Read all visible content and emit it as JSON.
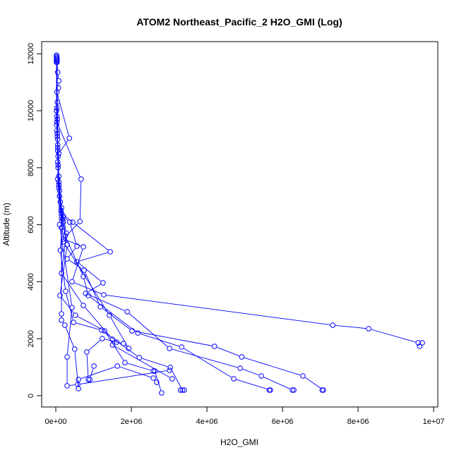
{
  "chart_data": {
    "type": "line",
    "title": "ATOM2 Northeast_Pacific_2 H2O_GMI (Log)",
    "xlabel": "H2O_GMI",
    "ylabel": "Altitude (m)",
    "xlim": [
      -374000,
      10110000
    ],
    "ylim": [
      -396,
      12426
    ],
    "x_ticks": [
      0,
      2000000,
      4000000,
      6000000,
      8000000,
      10000000
    ],
    "x_tick_labels": [
      "0e+00",
      "2e+06",
      "4e+06",
      "6e+06",
      "8e+06",
      "1e+07"
    ],
    "y_ticks": [
      0,
      2000,
      4000,
      6000,
      8000,
      10000,
      12000
    ],
    "y_tick_labels": [
      "0",
      "2000",
      "4000",
      "6000",
      "8000",
      "10000",
      "12000"
    ],
    "grid": false,
    "color": "#0000FF",
    "marker": "open-circle",
    "profiles": [
      [
        [
          20000.0,
          11950
        ],
        [
          20000.0,
          11900
        ],
        [
          30000.0,
          11850
        ],
        [
          20000.0,
          11800
        ],
        [
          30000.0,
          11750
        ],
        [
          50000.0,
          11350
        ],
        [
          80000.0,
          11050
        ],
        [
          70000.0,
          10800
        ],
        [
          30000.0,
          10650
        ],
        [
          360000.0,
          9035
        ],
        [
          80000.0,
          8500
        ],
        [
          50000.0,
          7600
        ],
        [
          100000.0,
          7000
        ],
        [
          150000.0,
          6400
        ],
        [
          450000.0,
          6089
        ],
        [
          1440000.0,
          5050
        ],
        [
          560000.0,
          4700
        ],
        [
          1250000.0,
          3960
        ],
        [
          790000.0,
          3589
        ],
        [
          1890000.0,
          2945
        ],
        [
          3010000.0,
          1658
        ],
        [
          4880000.0,
          965
        ],
        [
          5440000.0,
          693
        ],
        [
          6260000.0,
          198
        ],
        [
          6300000.0,
          198
        ]
      ],
      [
        [
          30000.0,
          11800
        ],
        [
          40000.0,
          10300
        ],
        [
          20000.0,
          10000
        ],
        [
          30000.0,
          9600
        ],
        [
          670000.0,
          7600
        ],
        [
          640000.0,
          6114
        ],
        [
          200000.0,
          5500
        ],
        [
          730000.0,
          5223
        ],
        [
          430000.0,
          4000
        ],
        [
          1270000.0,
          3540
        ],
        [
          7330000.0,
          2475
        ],
        [
          8280000.0,
          2351
        ],
        [
          9590000.0,
          1856
        ],
        [
          9630000.0,
          1733
        ],
        [
          9700000.0,
          1856
        ]
      ],
      [
        [
          20000.0,
          11900
        ],
        [
          20000.0,
          9500
        ],
        [
          40000.0,
          9100
        ],
        [
          50000.0,
          8200
        ],
        [
          80000.0,
          7300
        ],
        [
          120000.0,
          6800
        ],
        [
          200000.0,
          6300
        ],
        [
          370000.0,
          6089
        ],
        [
          560000.0,
          5248
        ],
        [
          300000.0,
          4800
        ],
        [
          750000.0,
          4406
        ],
        [
          1180000.0,
          3119
        ],
        [
          2020000.0,
          2277
        ],
        [
          4200000.0,
          1733
        ],
        [
          4920000.0,
          1361
        ],
        [
          6540000.0,
          693
        ],
        [
          7080000.0,
          198
        ],
        [
          7050000.0,
          198
        ]
      ],
      [
        [
          30000.0,
          11700
        ],
        [
          20000.0,
          10000
        ],
        [
          30000.0,
          9300
        ],
        [
          60000.0,
          8000
        ],
        [
          100000.0,
          7200
        ],
        [
          140000.0,
          6500
        ],
        [
          250000.0,
          5600
        ],
        [
          730000.0,
          4183
        ],
        [
          860000.0,
          3515
        ],
        [
          2170000.0,
          2200
        ],
        [
          3330000.0,
          1708
        ],
        [
          4710000.0,
          594
        ],
        [
          5680000.0,
          198
        ],
        [
          5650000.0,
          198
        ]
      ],
      [
        [
          20000.0,
          11850
        ],
        [
          30000.0,
          9800
        ],
        [
          50000.0,
          8700
        ],
        [
          80000.0,
          7500
        ],
        [
          180000.0,
          6200
        ],
        [
          120000.0,
          5100
        ],
        [
          260000.0,
          3663
        ],
        [
          470000.0,
          2574
        ],
        [
          1210000.0,
          2302
        ],
        [
          2210000.0,
          1337
        ],
        [
          3030000.0,
          990
        ],
        [
          3350000.0,
          198
        ],
        [
          3300000.0,
          198
        ],
        [
          3400000.0,
          198
        ]
      ],
      [
        [
          20000.0,
          11750
        ],
        [
          40000.0,
          9200
        ],
        [
          60000.0,
          8400
        ],
        [
          100000.0,
          7000
        ],
        [
          200000.0,
          6100
        ],
        [
          300000.0,
          5300
        ],
        [
          110000.0,
          3515
        ],
        [
          520000.0,
          2822
        ],
        [
          1290000.0,
          2277
        ],
        [
          1830000.0,
          1163
        ],
        [
          2580000.0,
          866
        ],
        [
          2620000.0,
          866
        ],
        [
          2800000.0,
          99
        ]
      ],
      [
        [
          30000.0,
          11800
        ],
        [
          50000.0,
          9000
        ],
        [
          80000.0,
          7700
        ],
        [
          150000.0,
          6600
        ],
        [
          280000.0,
          5700
        ],
        [
          150000.0,
          4300
        ],
        [
          730000.0,
          3168
        ],
        [
          1500000.0,
          1980
        ],
        [
          1610000.0,
          1881
        ],
        [
          1500000.0,
          1782
        ],
        [
          3080000.0,
          594
        ]
      ],
      [
        [
          20000.0,
          11900
        ],
        [
          30000.0,
          10100
        ],
        [
          50000.0,
          8800
        ],
        [
          80000.0,
          7400
        ],
        [
          150000.0,
          5900
        ],
        [
          150000.0,
          2871
        ],
        [
          150000.0,
          2650
        ],
        [
          240000.0,
          2475
        ],
        [
          500000.0,
          1634
        ],
        [
          600000.0,
          248
        ],
        [
          600000.0,
          569
        ],
        [
          1630000.0,
          1040
        ],
        [
          2580000.0,
          619
        ],
        [
          2670000.0,
          470
        ]
      ],
      [
        [
          20000.0,
          11700
        ],
        [
          40000.0,
          9700
        ],
        [
          60000.0,
          8100
        ],
        [
          200000.0,
          5400
        ],
        [
          1420000.0,
          2822
        ],
        [
          1930000.0,
          1658
        ],
        [
          1790000.0,
          1832
        ],
        [
          1230000.0,
          2005
        ],
        [
          820000.0,
          1535
        ],
        [
          860000.0,
          569
        ],
        [
          900000.0,
          569
        ],
        [
          1010000.0,
          1040
        ]
      ],
      [
        [
          30000.0,
          11850
        ],
        [
          50000.0,
          8600
        ],
        [
          100000.0,
          6000
        ],
        [
          430000.0,
          3094
        ],
        [
          300000.0,
          1361
        ],
        [
          300000.0,
          347
        ],
        [
          580000.0,
          396
        ],
        [
          3010000.0,
          891
        ]
      ]
    ]
  }
}
